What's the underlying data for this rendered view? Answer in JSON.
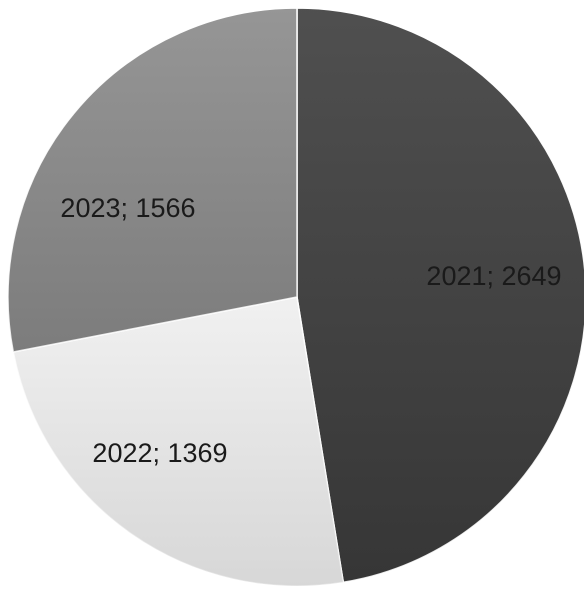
{
  "chart_data": {
    "type": "pie",
    "title": "",
    "slices": [
      {
        "category": "2021",
        "value": 2649,
        "label": "2021; 2649",
        "color": "#3c3c3c"
      },
      {
        "category": "2022",
        "value": 1369,
        "label": "2022; 1369",
        "color": "#efefef"
      },
      {
        "category": "2023",
        "value": 1566,
        "label": "2023; 1566",
        "color": "#8a8a8a"
      }
    ],
    "start_angle": "12 o'clock",
    "direction": "clockwise",
    "legend": "none"
  }
}
